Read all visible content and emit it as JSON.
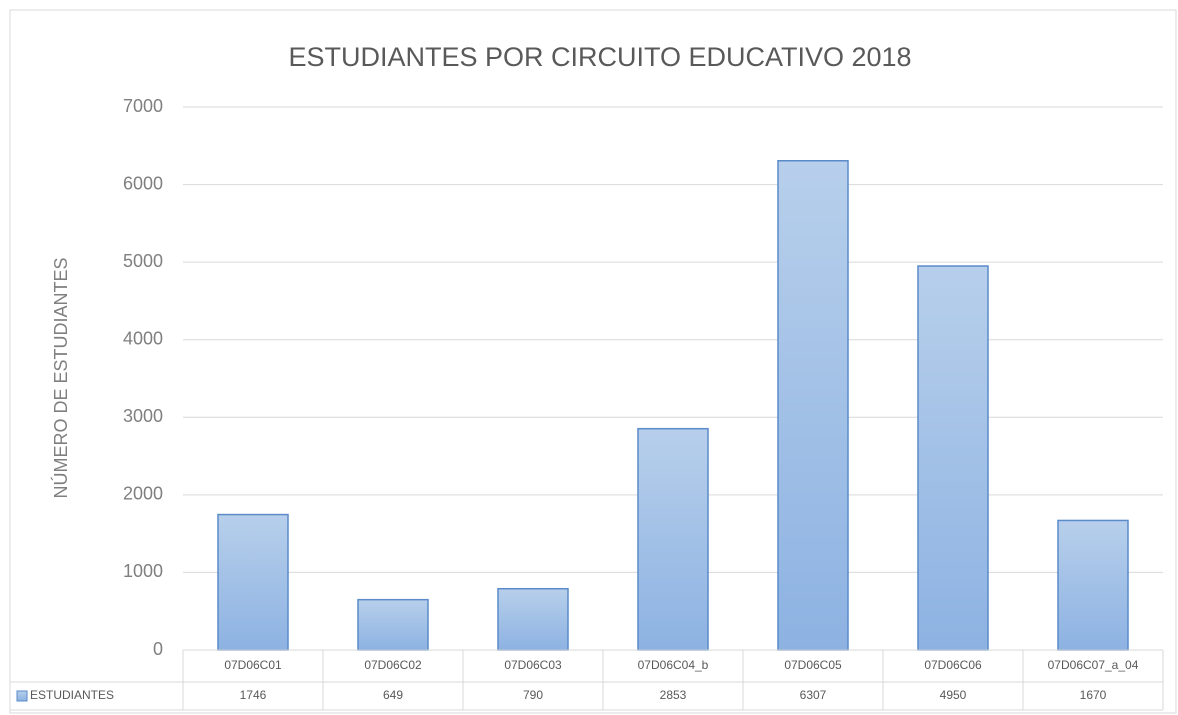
{
  "chart_data": {
    "type": "bar",
    "title": "ESTUDIANTES POR CIRCUITO EDUCATIVO 2018",
    "y_label": "NÚMERO DE ESTUDIANTES",
    "categories": [
      "07D06C01",
      "07D06C02",
      "07D06C03",
      "07D06C04_b",
      "07D06C05",
      "07D06C06",
      "07D06C07_a_04"
    ],
    "series": [
      {
        "name": "ESTUDIANTES",
        "color": "#9dbde6",
        "values": [
          1746,
          649,
          790,
          2853,
          6307,
          4950,
          1670
        ]
      }
    ],
    "ylim": [
      0,
      7000
    ],
    "yticks": [
      0,
      1000,
      2000,
      3000,
      4000,
      5000,
      6000,
      7000
    ],
    "grid": true,
    "data_table": true
  }
}
